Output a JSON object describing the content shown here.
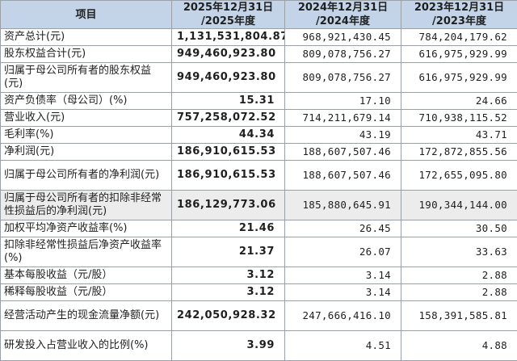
{
  "header": {
    "item": "项目",
    "col1_line1": "2025年12月31日",
    "col1_line2": "/2025年度",
    "col2_line1": "2024年12月31日",
    "col2_line2": "/2024年度",
    "col3_line1": "2023年12月31日",
    "col3_line2": "/2023年度"
  },
  "rows": [
    {
      "label": "资产总计(元)",
      "v2025": "1,131,531,804.87",
      "v2024": "968,921,430.45",
      "v2023": "784,204,179.62"
    },
    {
      "label": "股东权益合计(元)",
      "v2025": "949,460,923.80",
      "v2024": "809,078,756.27",
      "v2023": "616,975,929.99"
    },
    {
      "label": "归属于母公司所有者的股东权益(元)",
      "v2025": "949,460,923.80",
      "v2024": "809,078,756.27",
      "v2023": "616,975,929.99"
    },
    {
      "label": "资产负债率（母公司）(%)",
      "v2025": "15.31",
      "v2024": "17.10",
      "v2023": "24.66"
    },
    {
      "label": "营业收入(元)",
      "v2025": "757,258,072.52",
      "v2024": "714,211,679.14",
      "v2023": "710,938,115.52"
    },
    {
      "label": "毛利率(%)",
      "v2025": "44.34",
      "v2024": "43.19",
      "v2023": "43.71"
    },
    {
      "label": "净利润(元)",
      "v2025": "186,910,615.53",
      "v2024": "188,607,507.46",
      "v2023": "172,872,855.56"
    },
    {
      "label": "归属于母公司所有者的净利润(元)",
      "v2025": "186,910,615.53",
      "v2024": "188,607,507.46",
      "v2023": "172,655,095.80"
    },
    {
      "label": "归属于母公司所有者的扣除非经常性损益后的净利润(元)",
      "v2025": "186,129,773.06",
      "v2024": "185,880,645.91",
      "v2023": "190,344,144.00"
    },
    {
      "label": "加权平均净资产收益率(%)",
      "v2025": "21.46",
      "v2024": "26.45",
      "v2023": "30.50"
    },
    {
      "label": "扣除非经常性损益后净资产收益率(%)",
      "v2025": "21.37",
      "v2024": "26.07",
      "v2023": "33.63"
    },
    {
      "label": "基本每股收益（元/股）",
      "v2025": "3.12",
      "v2024": "3.14",
      "v2023": "2.88"
    },
    {
      "label": "稀释每股收益（元/股）",
      "v2025": "3.12",
      "v2024": "3.14",
      "v2023": "2.88"
    },
    {
      "label": "经营活动产生的现金流量净额(元)",
      "v2025": "242,050,928.32",
      "v2024": "247,666,416.10",
      "v2023": "158,391,585.81"
    },
    {
      "label": "研发投入占营业收入的比例(%)",
      "v2025": "3.99",
      "v2024": "4.51",
      "v2023": "4.88"
    }
  ]
}
